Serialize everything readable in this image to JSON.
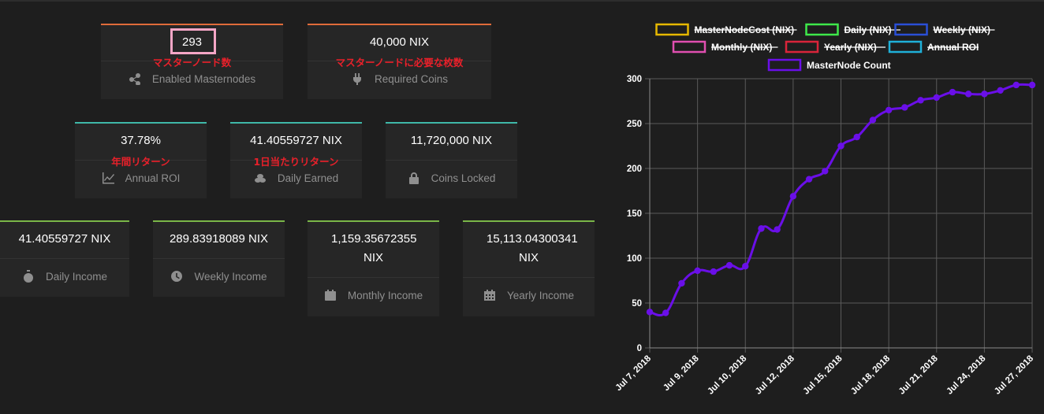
{
  "cards": [
    {
      "id": "enabled",
      "value": "293",
      "label": "Enabled Masternodes",
      "icon": "share-icon",
      "annotation": "マスターノード数"
    },
    {
      "id": "required",
      "value": "40,000 NIX",
      "label": "Required Coins",
      "icon": "plug-icon",
      "annotation": "マスターノードに必要な枚数"
    },
    {
      "id": "roi",
      "value": "37.78%",
      "label": "Annual ROI",
      "icon": "chart-line-icon",
      "annotation": "年間リターン"
    },
    {
      "id": "daily-earned",
      "value": "41.40559727 NIX",
      "label": "Daily Earned",
      "icon": "coins-icon",
      "annotation": "1日当たりリターン"
    },
    {
      "id": "locked",
      "value": "11,720,000 NIX",
      "label": "Coins Locked",
      "icon": "lock-icon"
    },
    {
      "id": "daily-income",
      "value": "41.40559727 NIX",
      "label": "Daily Income",
      "icon": "stopwatch-icon"
    },
    {
      "id": "weekly-income",
      "value": "289.83918089 NIX",
      "label": "Weekly Income",
      "icon": "clock-icon"
    },
    {
      "id": "monthly-income",
      "value": "1,159.35672355 NIX",
      "label": "Monthly Income",
      "icon": "calendar-icon"
    },
    {
      "id": "yearly-income",
      "value": "15,113.04300341 NIX",
      "label": "Yearly Income",
      "icon": "calendar-grid-icon"
    }
  ],
  "chart_data": {
    "type": "line",
    "legend": [
      {
        "name": "MasterNodeCost (NIX)",
        "color": "#e6b800",
        "hidden": true
      },
      {
        "name": "Daily (NIX)",
        "color": "#3ee84a",
        "hidden": true
      },
      {
        "name": "Weekly (NIX)",
        "color": "#2a4fd6",
        "hidden": true
      },
      {
        "name": "Monthly (NIX)",
        "color": "#e04fb0",
        "hidden": true
      },
      {
        "name": "Yearly (NIX)",
        "color": "#d9243a",
        "hidden": true
      },
      {
        "name": "Annual ROI",
        "color": "#1fb0d8",
        "hidden": true
      },
      {
        "name": "MasterNode Count",
        "color": "#6a0fe8",
        "hidden": false
      }
    ],
    "legend_position": "top",
    "grid": true,
    "ylim": [
      0,
      300
    ],
    "yticks": [
      0,
      50,
      100,
      150,
      200,
      250,
      300
    ],
    "xtick_labels": [
      "Jul 7, 2018",
      "Jul 9, 2018",
      "Jul 10, 2018",
      "Jul 12, 2018",
      "Jul 15, 2018",
      "Jul 18, 2018",
      "Jul 21, 2018",
      "Jul 24, 2018",
      "Jul 27, 2018"
    ],
    "series": [
      {
        "name": "MasterNode Count",
        "color": "#6a0fe8",
        "values": [
          40,
          39,
          72,
          86,
          85,
          92,
          91,
          133,
          132,
          169,
          188,
          197,
          225,
          235,
          254,
          265,
          268,
          276,
          279,
          285,
          283,
          283,
          287,
          293,
          293
        ]
      }
    ]
  }
}
